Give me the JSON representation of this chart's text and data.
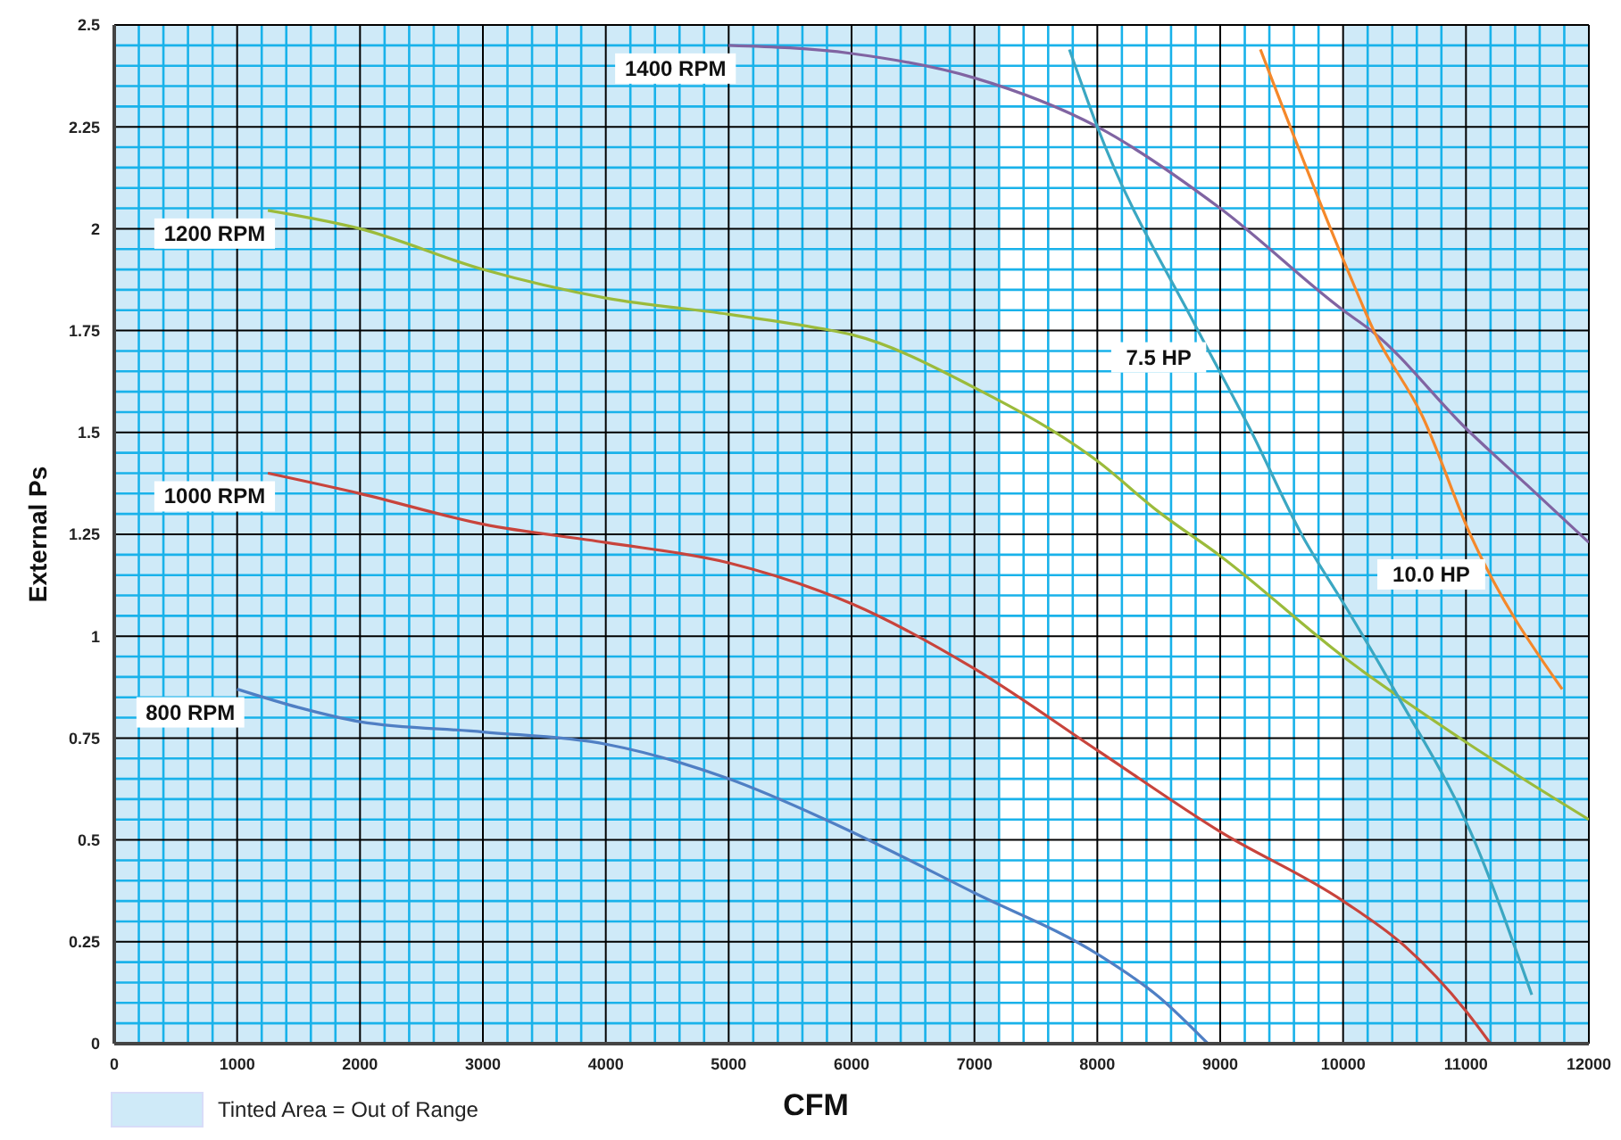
{
  "chart_data": {
    "type": "line",
    "xlabel": "CFM",
    "ylabel": "External Ps",
    "xlim": [
      0,
      12000
    ],
    "xticks": [
      0,
      {
        "value": 200,
        "label": null
      },
      {
        "value": 400,
        "label": null
      },
      {
        "value": 600,
        "label": null
      },
      {
        "value": 800,
        "label": null
      },
      1000,
      {
        "value": 1200,
        "label": null
      },
      {
        "value": 1400,
        "label": null
      },
      {
        "value": 1600,
        "label": null
      },
      {
        "value": 1800,
        "label": null
      },
      2000,
      {
        "value": 2200,
        "label": null
      },
      {
        "value": 2400,
        "label": null
      },
      {
        "value": 2600,
        "label": null
      },
      {
        "value": 2800,
        "label": null
      },
      3000,
      {
        "value": 3200,
        "label": null
      },
      {
        "value": 3400,
        "label": null
      },
      {
        "value": 3600,
        "label": null
      },
      {
        "value": 3800,
        "label": null
      },
      4000,
      {
        "value": 4200,
        "label": null
      },
      {
        "value": 4400,
        "label": null
      },
      {
        "value": 4600,
        "label": null
      },
      {
        "value": 4800,
        "label": null
      },
      5000,
      {
        "value": 5200,
        "label": null
      },
      {
        "value": 5400,
        "label": null
      },
      {
        "value": 5600,
        "label": null
      },
      {
        "value": 5800,
        "label": null
      },
      6000,
      {
        "value": 6200,
        "label": null
      },
      {
        "value": 6400,
        "label": null
      },
      {
        "value": 6600,
        "label": null
      },
      {
        "value": 6800,
        "label": null
      },
      7000,
      {
        "value": 7200,
        "label": null
      },
      {
        "value": 7400,
        "label": null
      },
      {
        "value": 7600,
        "label": null
      },
      {
        "value": 7800,
        "label": null
      },
      8000,
      {
        "value": 8200,
        "label": null
      },
      {
        "value": 8400,
        "label": null
      },
      {
        "value": 8600,
        "label": null
      },
      {
        "value": 8800,
        "label": null
      },
      9000,
      {
        "value": 9200,
        "label": null
      },
      {
        "value": 9400,
        "label": null
      },
      {
        "value": 9600,
        "label": null
      },
      {
        "value": 9800,
        "label": null
      },
      10000,
      {
        "value": 10200,
        "label": null
      },
      {
        "value": 10400,
        "label": null
      },
      {
        "value": 10600,
        "label": null
      },
      {
        "value": 10800,
        "label": null
      },
      11000,
      {
        "value": 11200,
        "label": null
      },
      {
        "value": 11400,
        "label": null
      },
      {
        "value": 11600,
        "label": null
      },
      {
        "value": 11800,
        "label": null
      },
      12000
    ],
    "ylim": [
      0,
      2.5
    ],
    "yticks": [
      0,
      {
        "value": 0.05,
        "label": null
      },
      {
        "value": 0.1,
        "label": null
      },
      {
        "value": 0.15,
        "label": null
      },
      {
        "value": 0.2,
        "label": null
      },
      0.25,
      {
        "value": 0.3,
        "label": null
      },
      {
        "value": 0.35,
        "label": null
      },
      {
        "value": 0.4,
        "label": null
      },
      {
        "value": 0.45,
        "label": null
      },
      0.5,
      {
        "value": 0.55,
        "label": null
      },
      {
        "value": 0.6,
        "label": null
      },
      {
        "value": 0.65,
        "label": null
      },
      {
        "value": 0.7,
        "label": null
      },
      0.75,
      {
        "value": 0.8,
        "label": null
      },
      {
        "value": 0.85,
        "label": null
      },
      {
        "value": 0.9,
        "label": null
      },
      {
        "value": 0.95,
        "label": null
      },
      1,
      {
        "value": 1.05,
        "label": null
      },
      {
        "value": 1.1,
        "label": null
      },
      {
        "value": 1.15,
        "label": null
      },
      {
        "value": 1.2,
        "label": null
      },
      1.25,
      {
        "value": 1.3,
        "label": null
      },
      {
        "value": 1.35,
        "label": null
      },
      {
        "value": 1.4,
        "label": null
      },
      {
        "value": 1.45,
        "label": null
      },
      1.5,
      {
        "value": 1.55,
        "label": null
      },
      {
        "value": 1.6,
        "label": null
      },
      {
        "value": 1.65,
        "label": null
      },
      {
        "value": 1.7,
        "label": null
      },
      1.75,
      {
        "value": 1.8,
        "label": null
      },
      {
        "value": 1.85,
        "label": null
      },
      {
        "value": 1.9,
        "label": null
      },
      {
        "value": 1.95,
        "label": null
      },
      2,
      {
        "value": 2.05,
        "label": null
      },
      {
        "value": 2.1,
        "label": null
      },
      {
        "value": 2.15,
        "label": null
      },
      {
        "value": 2.2,
        "label": null
      },
      2.25,
      {
        "value": 2.3,
        "label": null
      },
      {
        "value": 2.35,
        "label": null
      },
      {
        "value": 2.4,
        "label": null
      },
      {
        "value": 2.45,
        "label": null
      },
      2.5
    ],
    "grid": true,
    "marker": "none",
    "line_style": "solid",
    "bands": [
      {
        "axis": "x",
        "from": 0,
        "to": 7200,
        "label": "Tinted Area = Out of Range",
        "color": "#cfeaf8"
      },
      {
        "axis": "x",
        "from": 10000,
        "to": 12000,
        "color": "#cfeaf8"
      }
    ],
    "series": [
      {
        "name": "800 RPM",
        "color": "#4f7fc4",
        "x": [
          1000,
          1500,
          2000,
          3000,
          4000,
          5000,
          5750,
          6000,
          7000,
          8000,
          8500,
          8900
        ],
        "values": [
          0.87,
          0.825,
          0.79,
          0.765,
          0.735,
          0.65,
          0.555,
          0.52,
          0.37,
          0.22,
          0.115,
          0
        ]
      },
      {
        "name": "1000 RPM",
        "color": "#c8443c",
        "x": [
          1250,
          2000,
          3000,
          4000,
          5000,
          5750,
          6000,
          7000,
          8000,
          9000,
          10000,
          10500,
          11000,
          11200
        ],
        "values": [
          1.4,
          1.35,
          1.275,
          1.23,
          1.18,
          1.11,
          1.08,
          0.92,
          0.72,
          0.52,
          0.35,
          0.24,
          0.08,
          0
        ]
      },
      {
        "name": "1200 RPM",
        "color": "#9bbb3b",
        "x": [
          1250,
          2000,
          3000,
          4000,
          5000,
          5750,
          6000,
          7000,
          8000,
          8500,
          9000,
          10000,
          11000,
          12000
        ],
        "values": [
          2.045,
          2.0,
          1.9,
          1.83,
          1.79,
          1.755,
          1.74,
          1.61,
          1.43,
          1.305,
          1.197,
          0.95,
          0.74,
          0.55
        ]
      },
      {
        "name": "1400 RPM",
        "color": "#8064a2",
        "x": [
          5000,
          6000,
          7000,
          8000,
          9000,
          10000,
          10250,
          11000,
          11500,
          12000
        ],
        "values": [
          2.45,
          2.43,
          2.37,
          2.25,
          2.05,
          1.8,
          1.745,
          1.51,
          1.37,
          1.23
        ]
      },
      {
        "name": "7.5 HP",
        "color": "#3ba7c2",
        "x": [
          7773,
          8000,
          8819,
          9240,
          9666,
          10035,
          10432,
          11037,
          11535
        ],
        "values": [
          2.44,
          2.25,
          1.75,
          1.51,
          1.248,
          1.065,
          0.86,
          0.52,
          0.12
        ]
      },
      {
        "name": "10.0 HP",
        "color": "#f5882a",
        "x": [
          9327,
          10035,
          10257,
          10645,
          11037,
          11783
        ],
        "values": [
          2.44,
          1.9,
          1.745,
          1.54,
          1.248,
          0.87
        ]
      }
    ]
  }
}
